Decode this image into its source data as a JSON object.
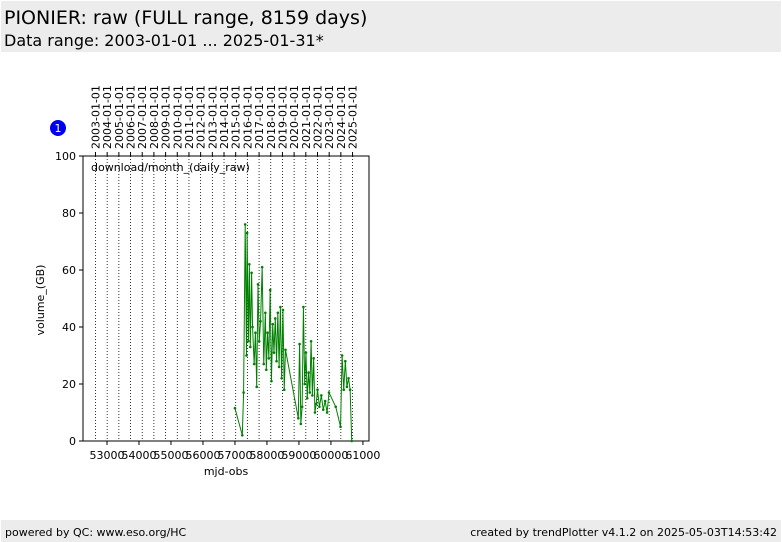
{
  "chart_data": {
    "type": "line",
    "title": "PIONIER: raw (FULL range, 8159 days)",
    "subtitle": "Data range: 2003-01-01 ... 2025-01-31*",
    "badge": "1",
    "annotation": "download/month_(daily_raw)",
    "x_label": "mjd-obs",
    "y_label": "volume_(GB)",
    "footer_left": "powered by QC: www.eso.org/HC",
    "footer_right": "created by trendPlotter v4.1.2 on 2025-05-03T14:53:42",
    "xlim": [
      52250,
      61190
    ],
    "ylim": [
      0,
      100
    ],
    "xticks": [
      53000,
      54000,
      55000,
      56000,
      57000,
      58000,
      59000,
      60000,
      61000
    ],
    "yticks": [
      0,
      20,
      40,
      60,
      80,
      100
    ],
    "top_ticks": [
      {
        "value": 52640,
        "label": "2003-01-01"
      },
      {
        "value": 53005,
        "label": "2004-01-01"
      },
      {
        "value": 53371,
        "label": "2005-01-01"
      },
      {
        "value": 53736,
        "label": "2006-01-01"
      },
      {
        "value": 54101,
        "label": "2007-01-01"
      },
      {
        "value": 54466,
        "label": "2008-01-01"
      },
      {
        "value": 54832,
        "label": "2009-01-01"
      },
      {
        "value": 55197,
        "label": "2010-01-01"
      },
      {
        "value": 55562,
        "label": "2011-01-01"
      },
      {
        "value": 55927,
        "label": "2012-01-01"
      },
      {
        "value": 56293,
        "label": "2013-01-01"
      },
      {
        "value": 56658,
        "label": "2014-01-01"
      },
      {
        "value": 57023,
        "label": "2015-01-01"
      },
      {
        "value": 57388,
        "label": "2016-01-01"
      },
      {
        "value": 57754,
        "label": "2017-01-01"
      },
      {
        "value": 58119,
        "label": "2018-01-01"
      },
      {
        "value": 58484,
        "label": "2019-01-01"
      },
      {
        "value": 58849,
        "label": "2020-01-01"
      },
      {
        "value": 59215,
        "label": "2021-01-01"
      },
      {
        "value": 59580,
        "label": "2022-01-01"
      },
      {
        "value": 59945,
        "label": "2023-01-01"
      },
      {
        "value": 60310,
        "label": "2024-01-01"
      },
      {
        "value": 60676,
        "label": "2025-01-01"
      }
    ],
    "x": [
      57000,
      57230,
      57270,
      57320,
      57360,
      57380,
      57420,
      57450,
      57480,
      57520,
      57550,
      57600,
      57640,
      57680,
      57720,
      57760,
      57800,
      57850,
      57900,
      57950,
      57980,
      58020,
      58060,
      58100,
      58140,
      58180,
      58220,
      58260,
      58300,
      58340,
      58380,
      58420,
      58460,
      58500,
      58540,
      58580,
      58980,
      59020,
      59060,
      59100,
      59140,
      59180,
      59220,
      59260,
      59300,
      59340,
      59380,
      59420,
      59460,
      59500,
      59540,
      59580,
      59640,
      59700,
      59760,
      59820,
      59880,
      59940,
      60150,
      60300,
      60350,
      60400,
      60450,
      60500,
      60550,
      60600,
      60650
    ],
    "series": [
      {
        "name": "download/month_(daily_raw)",
        "color": "#008000",
        "values": [
          11.5,
          2,
          17,
          76,
          30,
          73,
          35,
          62,
          33,
          59,
          40,
          27,
          38,
          19,
          55,
          35,
          42,
          61,
          27,
          45,
          25,
          38,
          29,
          53,
          21,
          41,
          31,
          43,
          28,
          45,
          26,
          47,
          22,
          46,
          18,
          32,
          8,
          34,
          6,
          12,
          47,
          20,
          31,
          15,
          24,
          17,
          35,
          16,
          29,
          10,
          13,
          18,
          12,
          16,
          11,
          14,
          10,
          17,
          12,
          5,
          30,
          18,
          28,
          19,
          22,
          18,
          0
        ]
      }
    ]
  }
}
